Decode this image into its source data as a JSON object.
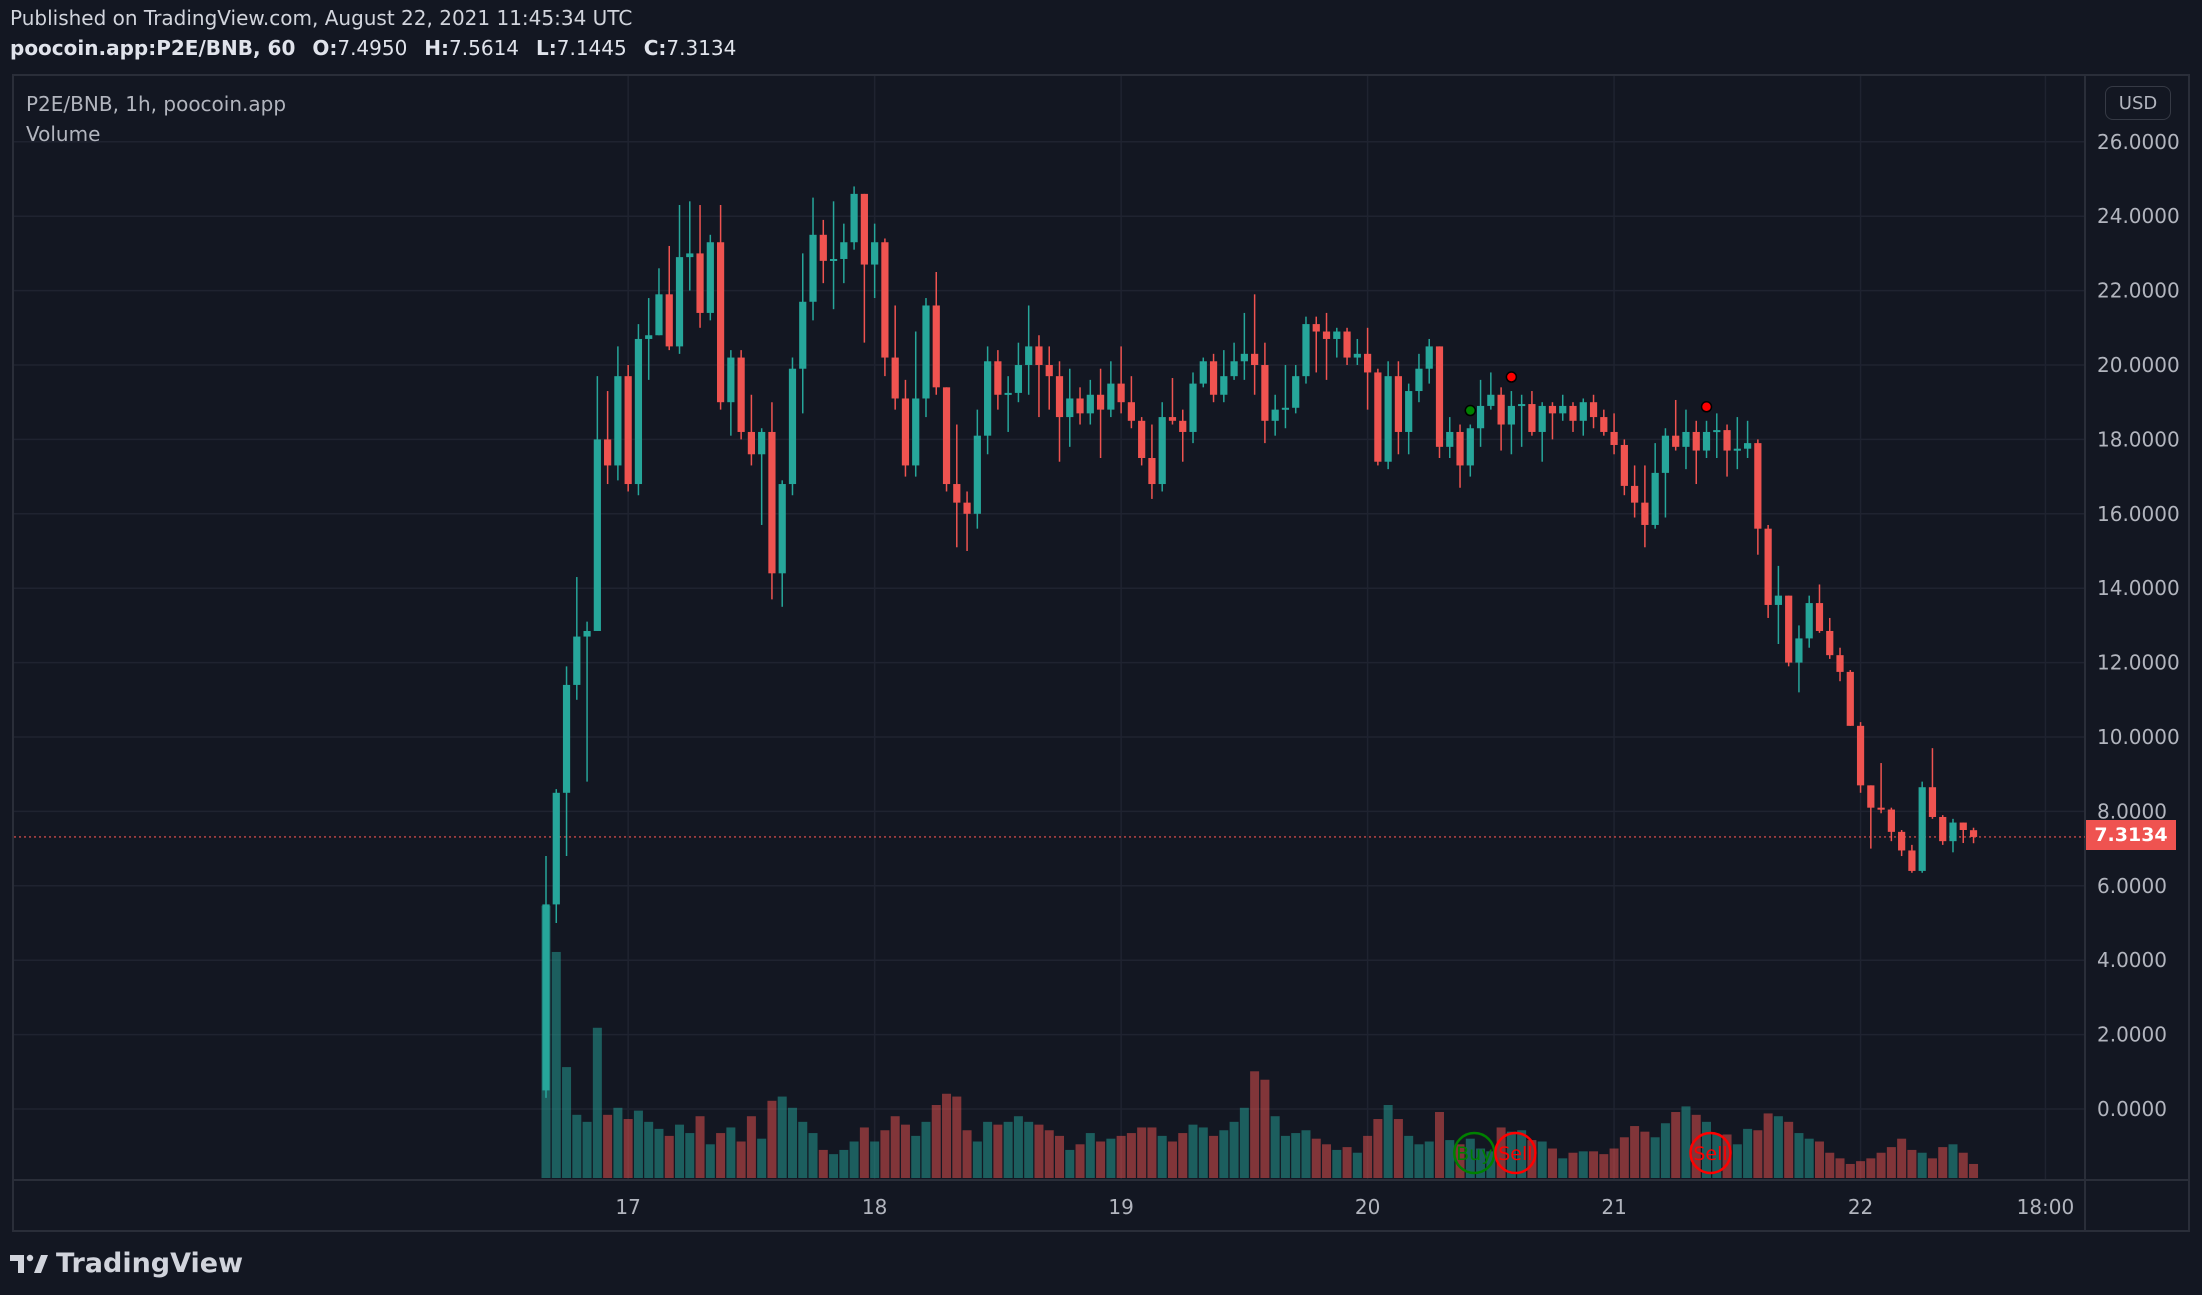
{
  "header": {
    "published": "Published on TradingView.com, August 22, 2021 11:45:34 UTC",
    "symbol": "poocoin.app:P2E/BNB, 60",
    "ohlc": {
      "o_label": "O:",
      "o": "7.4950",
      "h_label": "H:",
      "h": "7.5614",
      "l_label": "L:",
      "l": "7.1445",
      "c_label": "C:",
      "c": "7.3134"
    }
  },
  "legend": {
    "series": "P2E/BNB, 1h, poocoin.app",
    "volume": "Volume"
  },
  "currency_button": "USD",
  "last_price_label": "7.3134",
  "brand": "TradingView",
  "colors": {
    "background": "#131722",
    "up": "#26a69a",
    "down": "#ef5350",
    "grid": "#1f2330",
    "buy": "#008000",
    "sell": "#ff0000"
  },
  "chart_data": {
    "type": "candlestick",
    "title": "P2E/BNB, 1h, poocoin.app",
    "interval": "1h",
    "start": "2021-08-16 16:00",
    "ylim": [
      -2,
      27
    ],
    "y_ticks": [
      "26.0000",
      "24.0000",
      "22.0000",
      "20.0000",
      "18.0000",
      "16.0000",
      "14.0000",
      "12.0000",
      "10.0000",
      "8.0000",
      "6.0000",
      "4.0000",
      "2.0000",
      "0.0000"
    ],
    "y_tick_values": [
      26,
      24,
      22,
      20,
      18,
      16,
      14,
      12,
      10,
      8,
      6,
      4,
      2,
      0
    ],
    "x_ticks": [
      {
        "label": "17",
        "hour_index": 8
      },
      {
        "label": "18",
        "hour_index": 32
      },
      {
        "label": "19",
        "hour_index": 56
      },
      {
        "label": "20",
        "hour_index": 80
      },
      {
        "label": "21",
        "hour_index": 104
      },
      {
        "label": "22",
        "hour_index": 128
      },
      {
        "label": "18:00",
        "hour_index": 146
      }
    ],
    "last_price": 7.3134,
    "ohlc": [
      [
        0.5,
        6.8,
        0.3,
        5.5
      ],
      [
        5.5,
        8.6,
        5.0,
        8.5
      ],
      [
        8.5,
        11.9,
        6.8,
        11.4
      ],
      [
        11.4,
        14.3,
        11.0,
        12.7
      ],
      [
        12.7,
        13.1,
        8.8,
        12.85
      ],
      [
        12.85,
        19.7,
        12.85,
        18.0
      ],
      [
        18.0,
        19.3,
        16.8,
        17.3
      ],
      [
        17.3,
        20.5,
        16.9,
        19.7
      ],
      [
        19.7,
        20.0,
        16.6,
        16.8
      ],
      [
        16.8,
        21.1,
        16.5,
        20.7
      ],
      [
        20.7,
        21.8,
        19.6,
        20.8
      ],
      [
        20.8,
        22.6,
        20.8,
        21.9
      ],
      [
        21.9,
        23.2,
        20.4,
        20.5
      ],
      [
        20.5,
        24.3,
        20.3,
        22.9
      ],
      [
        22.9,
        24.4,
        22.0,
        23.0
      ],
      [
        23.0,
        24.3,
        21.0,
        21.4
      ],
      [
        21.4,
        23.5,
        21.2,
        23.3
      ],
      [
        23.3,
        24.3,
        18.8,
        19.0
      ],
      [
        19.0,
        20.4,
        18.1,
        20.2
      ],
      [
        20.2,
        20.4,
        18.0,
        18.2
      ],
      [
        18.2,
        19.2,
        17.3,
        17.6
      ],
      [
        17.6,
        18.3,
        15.7,
        18.2
      ],
      [
        18.2,
        19.0,
        13.7,
        14.4
      ],
      [
        14.4,
        16.9,
        13.5,
        16.8
      ],
      [
        16.8,
        20.2,
        16.5,
        19.9
      ],
      [
        19.9,
        23.0,
        18.7,
        21.7
      ],
      [
        21.7,
        24.5,
        21.2,
        23.5
      ],
      [
        23.5,
        23.9,
        22.2,
        22.8
      ],
      [
        22.8,
        24.4,
        21.5,
        22.85
      ],
      [
        22.85,
        23.8,
        22.2,
        23.3
      ],
      [
        23.3,
        24.8,
        23.1,
        24.6
      ],
      [
        24.6,
        24.6,
        20.6,
        22.7
      ],
      [
        22.7,
        23.8,
        21.8,
        23.3
      ],
      [
        23.3,
        23.4,
        19.7,
        20.2
      ],
      [
        20.2,
        21.6,
        18.8,
        19.1
      ],
      [
        19.1,
        19.6,
        17.0,
        17.3
      ],
      [
        17.3,
        20.9,
        17.0,
        19.1
      ],
      [
        19.1,
        21.8,
        18.6,
        21.6
      ],
      [
        21.6,
        22.5,
        19.2,
        19.4
      ],
      [
        19.4,
        19.4,
        16.6,
        16.8
      ],
      [
        16.8,
        18.4,
        15.1,
        16.3
      ],
      [
        16.3,
        16.6,
        15.0,
        16.0
      ],
      [
        16.0,
        18.8,
        15.6,
        18.1
      ],
      [
        18.1,
        20.5,
        17.6,
        20.1
      ],
      [
        20.1,
        20.4,
        18.8,
        19.2
      ],
      [
        19.2,
        19.7,
        18.2,
        19.25
      ],
      [
        19.25,
        20.6,
        19.0,
        20.0
      ],
      [
        20.0,
        21.6,
        19.2,
        20.5
      ],
      [
        20.5,
        20.8,
        18.6,
        20.0
      ],
      [
        20.0,
        20.5,
        18.8,
        19.7
      ],
      [
        19.7,
        20.1,
        17.4,
        18.6
      ],
      [
        18.6,
        19.9,
        17.8,
        19.1
      ],
      [
        19.1,
        19.4,
        18.4,
        18.7
      ],
      [
        18.7,
        19.6,
        18.4,
        19.2
      ],
      [
        19.2,
        19.9,
        17.5,
        18.8
      ],
      [
        18.8,
        20.1,
        18.6,
        19.5
      ],
      [
        19.5,
        20.5,
        18.7,
        19.0
      ],
      [
        19.0,
        19.7,
        18.3,
        18.5
      ],
      [
        18.5,
        18.6,
        17.3,
        17.5
      ],
      [
        17.5,
        18.4,
        16.4,
        16.8
      ],
      [
        16.8,
        19.0,
        16.6,
        18.6
      ],
      [
        18.6,
        19.65,
        18.4,
        18.5
      ],
      [
        18.5,
        18.8,
        17.4,
        18.2
      ],
      [
        18.2,
        19.8,
        17.9,
        19.5
      ],
      [
        19.5,
        20.2,
        19.4,
        20.1
      ],
      [
        20.1,
        20.3,
        19.0,
        19.2
      ],
      [
        19.2,
        20.4,
        19.0,
        19.7
      ],
      [
        19.7,
        20.6,
        19.6,
        20.1
      ],
      [
        20.1,
        21.4,
        19.6,
        20.3
      ],
      [
        20.3,
        21.9,
        19.2,
        20.0
      ],
      [
        20.0,
        20.6,
        17.9,
        18.5
      ],
      [
        18.5,
        19.2,
        18.1,
        18.8
      ],
      [
        18.8,
        20.0,
        18.3,
        18.85
      ],
      [
        18.85,
        20.0,
        18.7,
        19.7
      ],
      [
        19.7,
        21.3,
        19.5,
        21.1
      ],
      [
        21.1,
        21.3,
        19.8,
        20.9
      ],
      [
        20.9,
        21.4,
        19.6,
        20.7
      ],
      [
        20.7,
        21.0,
        20.2,
        20.9
      ],
      [
        20.9,
        21.0,
        20.0,
        20.2
      ],
      [
        20.2,
        20.7,
        20.0,
        20.3
      ],
      [
        20.3,
        21.0,
        18.8,
        19.8
      ],
      [
        19.8,
        19.9,
        17.3,
        17.4
      ],
      [
        17.4,
        20.1,
        17.2,
        19.7
      ],
      [
        19.7,
        20.1,
        17.6,
        18.2
      ],
      [
        18.2,
        19.5,
        17.6,
        19.3
      ],
      [
        19.3,
        20.3,
        19.0,
        19.9
      ],
      [
        19.9,
        20.7,
        19.5,
        20.5
      ],
      [
        20.5,
        20.5,
        17.5,
        17.8
      ],
      [
        17.8,
        18.6,
        17.5,
        18.2
      ],
      [
        18.2,
        18.4,
        16.7,
        17.3
      ],
      [
        17.3,
        18.4,
        17.0,
        18.3
      ],
      [
        18.3,
        19.6,
        17.8,
        18.9
      ],
      [
        18.9,
        19.8,
        18.8,
        19.2
      ],
      [
        19.2,
        19.4,
        17.7,
        18.4
      ],
      [
        18.4,
        19.3,
        17.6,
        18.9
      ],
      [
        18.9,
        19.2,
        17.8,
        18.95
      ],
      [
        18.95,
        19.3,
        18.1,
        18.2
      ],
      [
        18.2,
        19.0,
        17.4,
        18.9
      ],
      [
        18.9,
        19.0,
        18.0,
        18.7
      ],
      [
        18.7,
        19.2,
        18.5,
        18.9
      ],
      [
        18.9,
        19.0,
        18.2,
        18.5
      ],
      [
        18.5,
        19.1,
        18.1,
        19.0
      ],
      [
        19.0,
        19.2,
        18.3,
        18.6
      ],
      [
        18.6,
        18.8,
        18.1,
        18.2
      ],
      [
        18.2,
        18.7,
        17.6,
        17.85
      ],
      [
        17.85,
        18.0,
        16.5,
        16.75
      ],
      [
        16.75,
        17.3,
        15.9,
        16.3
      ],
      [
        16.3,
        17.3,
        15.1,
        15.7
      ],
      [
        15.7,
        17.9,
        15.6,
        17.1
      ],
      [
        17.1,
        18.3,
        15.9,
        18.1
      ],
      [
        18.1,
        19.06,
        17.7,
        17.8
      ],
      [
        17.8,
        18.8,
        17.2,
        18.2
      ],
      [
        18.2,
        18.5,
        16.8,
        17.7
      ],
      [
        17.7,
        18.5,
        17.5,
        18.2
      ],
      [
        18.2,
        18.7,
        17.5,
        18.25
      ],
      [
        18.25,
        18.4,
        17.0,
        17.7
      ],
      [
        17.7,
        18.6,
        17.2,
        17.75
      ],
      [
        17.75,
        18.5,
        17.5,
        17.9
      ],
      [
        17.9,
        18.0,
        14.9,
        15.6
      ],
      [
        15.6,
        15.7,
        13.2,
        13.55
      ],
      [
        13.55,
        14.6,
        12.5,
        13.8
      ],
      [
        13.8,
        13.8,
        11.9,
        12.0
      ],
      [
        12.0,
        13.0,
        11.2,
        12.65
      ],
      [
        12.65,
        13.8,
        12.4,
        13.6
      ],
      [
        13.6,
        14.1,
        12.8,
        12.85
      ],
      [
        12.85,
        13.2,
        12.1,
        12.2
      ],
      [
        12.2,
        12.4,
        11.5,
        11.75
      ],
      [
        11.75,
        11.8,
        10.3,
        10.3
      ],
      [
        10.3,
        10.4,
        8.5,
        8.7
      ],
      [
        8.7,
        8.7,
        7.0,
        8.1
      ],
      [
        8.1,
        9.3,
        7.95,
        8.05
      ],
      [
        8.05,
        8.1,
        7.2,
        7.45
      ],
      [
        7.45,
        7.5,
        6.8,
        6.95
      ],
      [
        6.95,
        7.1,
        6.35,
        6.4
      ],
      [
        6.4,
        8.8,
        6.35,
        8.65
      ],
      [
        8.65,
        9.7,
        7.8,
        7.85
      ],
      [
        7.85,
        7.9,
        7.1,
        7.2
      ],
      [
        7.2,
        7.8,
        6.9,
        7.7
      ],
      [
        7.7,
        7.7,
        7.15,
        7.5
      ],
      [
        7.495,
        7.5614,
        7.1445,
        7.3134
      ]
    ],
    "volume_relative": [
      194,
      161,
      79,
      45,
      40,
      107,
      45,
      50,
      42,
      48,
      40,
      35,
      30,
      38,
      32,
      44,
      24,
      32,
      36,
      26,
      44,
      28,
      55,
      58,
      50,
      40,
      32,
      20,
      17,
      20,
      26,
      36,
      26,
      34,
      44,
      38,
      30,
      40,
      52,
      60,
      58,
      34,
      26,
      40,
      38,
      40,
      44,
      40,
      38,
      34,
      30,
      20,
      24,
      32,
      26,
      28,
      30,
      32,
      36,
      36,
      30,
      26,
      32,
      38,
      36,
      30,
      34,
      40,
      50,
      76,
      70,
      44,
      30,
      32,
      34,
      28,
      24,
      20,
      22,
      18,
      30,
      42,
      52,
      42,
      30,
      24,
      26,
      47,
      27,
      24,
      28,
      21,
      19,
      36,
      33,
      34,
      27,
      26,
      21,
      14,
      18,
      19,
      19,
      17,
      21,
      29,
      37,
      33,
      29,
      39,
      47,
      51,
      45,
      40,
      31,
      31,
      24,
      35,
      34,
      46,
      44,
      40,
      32,
      28,
      26,
      18,
      14,
      10,
      12,
      14,
      18,
      22,
      28,
      20,
      18,
      14,
      22,
      24,
      18,
      10
    ],
    "signals": [
      {
        "type": "buy",
        "label": "Buy",
        "hour_index": 90
      },
      {
        "type": "sell",
        "label": "Sell",
        "hour_index": 94
      },
      {
        "type": "sell",
        "label": "Sell",
        "hour_index": 113
      }
    ]
  }
}
